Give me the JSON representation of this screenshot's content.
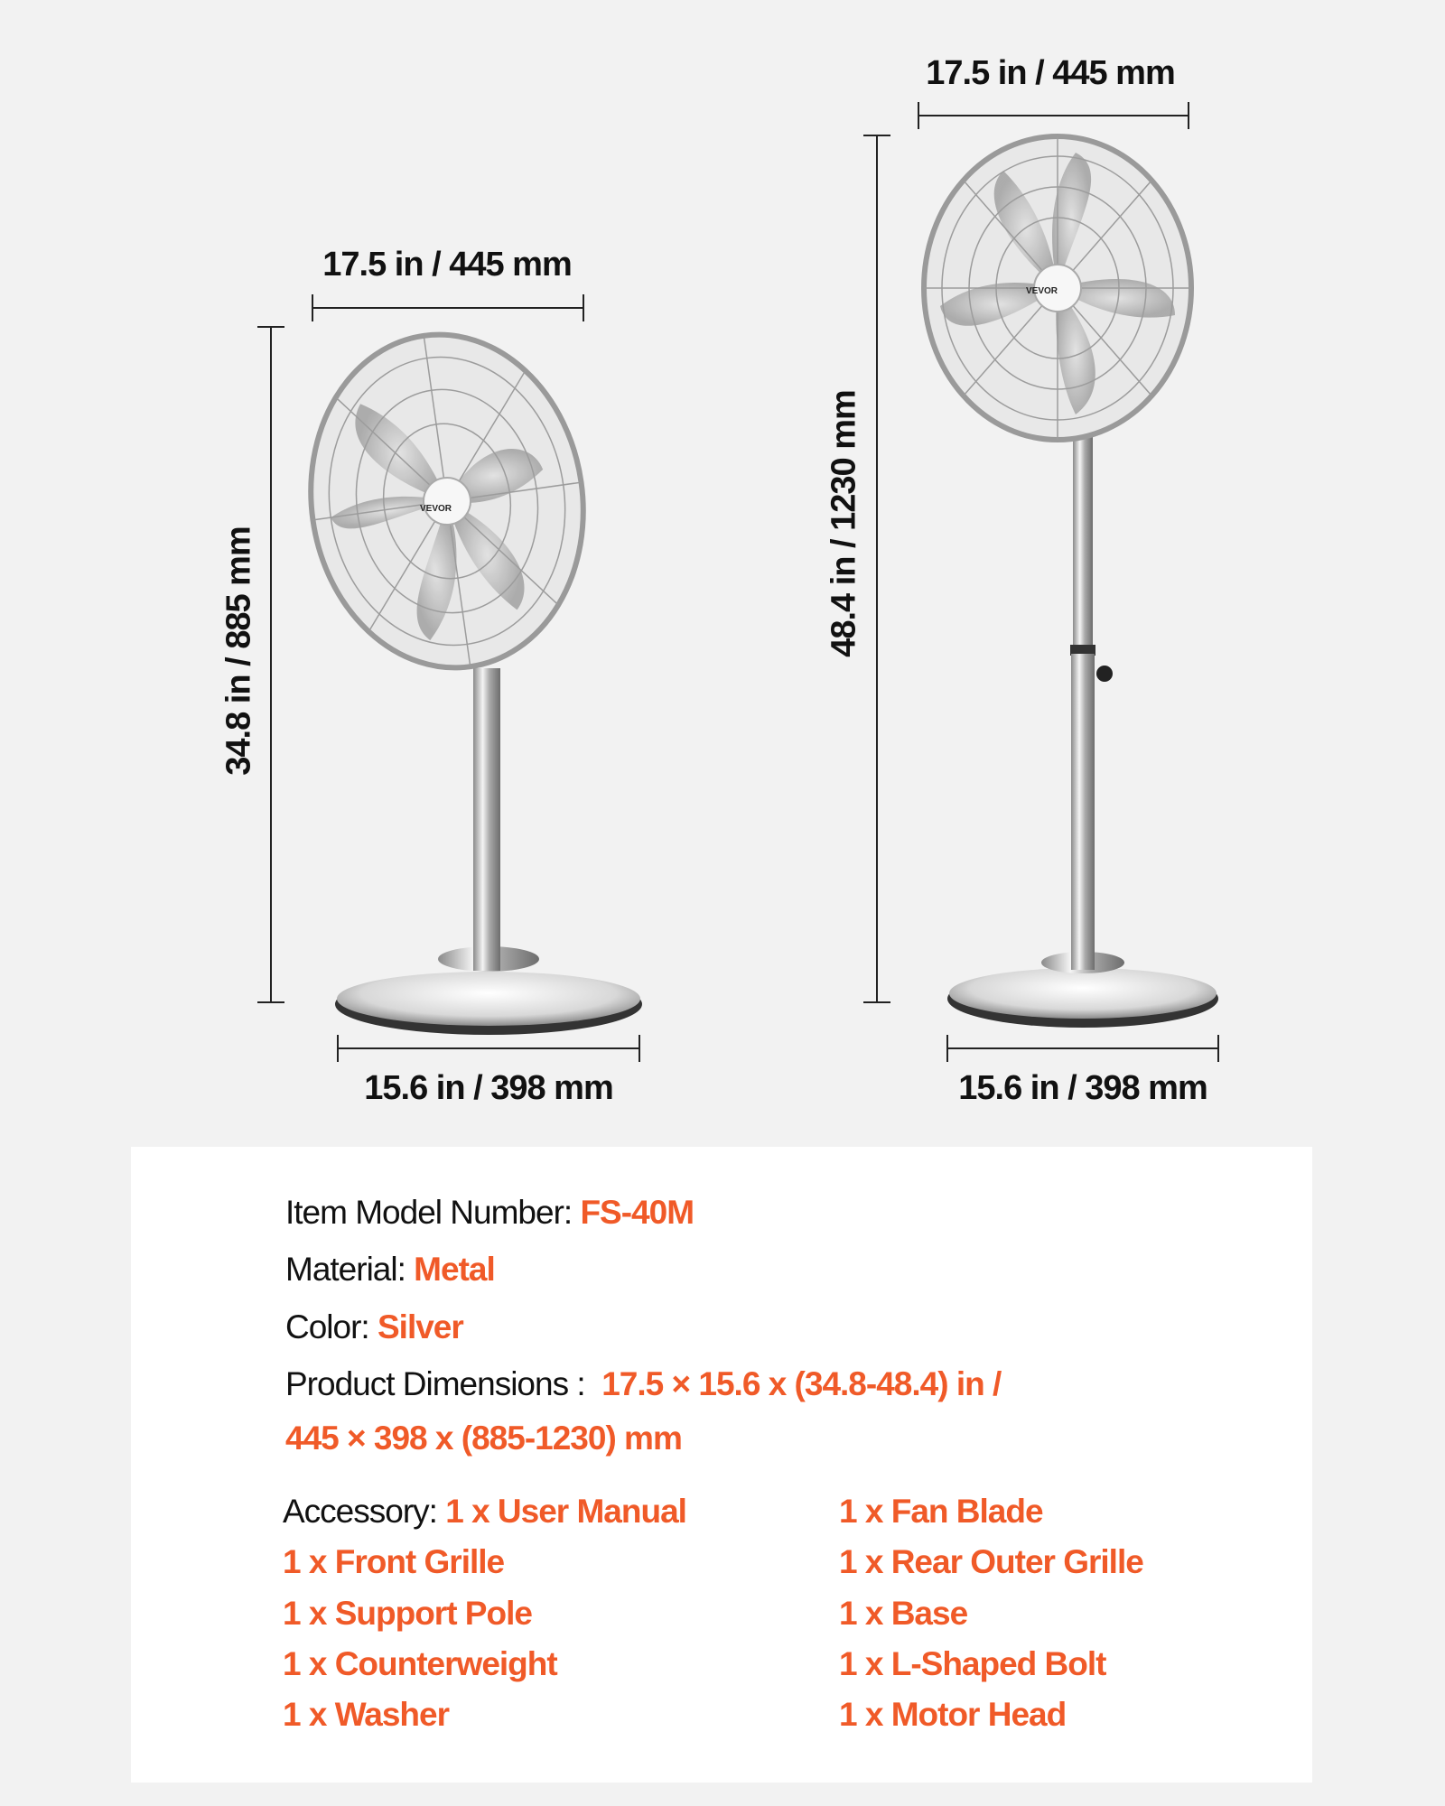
{
  "brand_logo": "VEVOR",
  "colors": {
    "accent": "#f05a28",
    "background": "#f2f2f2",
    "panel": "#ffffff",
    "text": "#111111"
  },
  "left_fan": {
    "width_label": "17.5 in / 445 mm",
    "height_label": "34.8 in / 885 mm",
    "base_label": "15.6 in / 398 mm"
  },
  "right_fan": {
    "width_label": "17.5 in / 445 mm",
    "height_label": "48.4 in / 1230 mm",
    "base_label": "15.6 in / 398 mm"
  },
  "specs": {
    "model_label": "Item Model Number:",
    "model_value": "FS-40M",
    "material_label": "Material:",
    "material_value": "Metal",
    "color_label": "Color:",
    "color_value": "Silver",
    "dimensions_label": "Product Dimensions :",
    "dimensions_value_in": "17.5 × 15.6 x (34.8-48.4) in /",
    "dimensions_value_mm": "445 × 398 x (885-1230) mm",
    "accessory_label": "Accessory:",
    "accessories_left": [
      "1 x User Manual",
      "1 x Front Grille",
      "1 x Support Pole",
      "1 x Counterweight",
      "1 x Washer"
    ],
    "accessories_right": [
      "1 x Fan Blade",
      "1 x Rear Outer Grille",
      "1 x Base",
      "1 x L-Shaped Bolt",
      "1 x Motor Head"
    ]
  }
}
